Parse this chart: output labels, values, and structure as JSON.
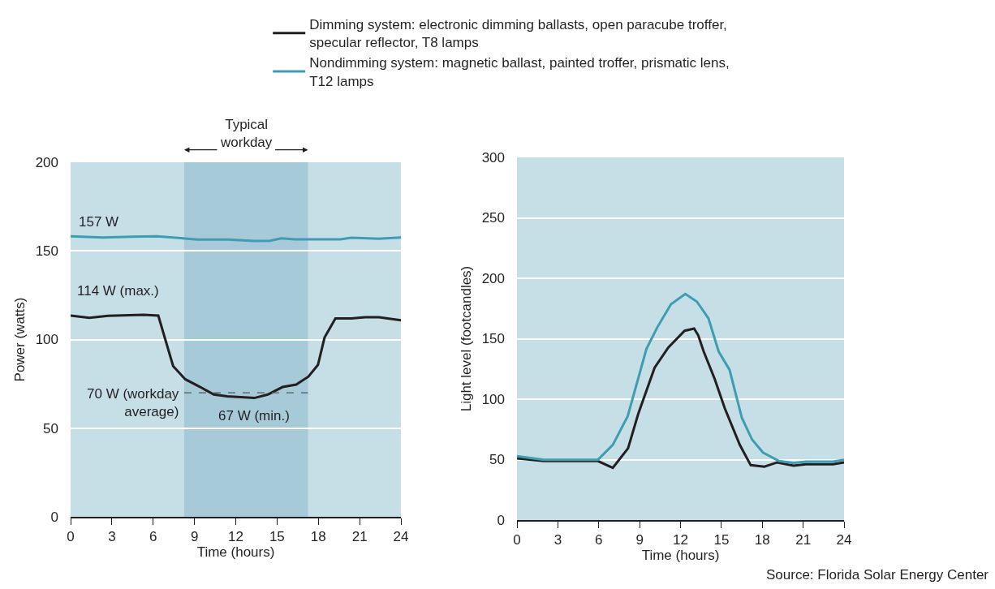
{
  "chart_data": [
    {
      "type": "line",
      "xlabel": "Time (hours)",
      "ylabel": "Power (watts)",
      "xlim": [
        0,
        24
      ],
      "xticks": [
        0,
        3,
        6,
        9,
        12,
        15,
        18,
        21,
        24
      ],
      "ylim": [
        0,
        200
      ],
      "yticks": [
        0,
        50,
        100,
        150,
        200
      ],
      "grid": "y",
      "legend": "top",
      "marker": "none",
      "line_style": "solid",
      "series": [
        {
          "name": "Dimming system: electronic dimming ballasts, open paracube troffer, specular reflector, T8 lamps",
          "color": "#231f20",
          "x": [
            0,
            1.36,
            2.73,
            4.3,
            5.29,
            6.37,
            7.45,
            8.33,
            9.42,
            10.4,
            11.38,
            13.35,
            14.33,
            15.4,
            16.39,
            17.28,
            17.97,
            18.45,
            19.24,
            20.4,
            21.4,
            22.4,
            24
          ],
          "values": [
            113.5,
            112.3,
            113.4,
            113.7,
            114,
            113.5,
            85,
            77.6,
            73.2,
            69,
            68,
            67,
            69,
            73.2,
            74.6,
            79.1,
            85.7,
            101.1,
            111.9,
            111.9,
            112.6,
            112.6,
            110.9
          ]
        },
        {
          "name": "Nondimming system: magnetic ballast, painted troffer, prismatic lens, T12 lamps",
          "color": "#3e9db3",
          "x": [
            0,
            2.34,
            4.5,
            6.27,
            7.45,
            9.2,
            11.4,
            13.35,
            14.5,
            15.3,
            16.3,
            19.6,
            20.4,
            22.4,
            24
          ],
          "values": [
            158.2,
            157.6,
            158,
            158.2,
            157.6,
            156.4,
            156.4,
            155.6,
            155.7,
            157.1,
            156.5,
            156.5,
            157.4,
            156.9,
            157.6
          ]
        },
        {
          "type": "line",
          "color": "#555555",
          "line_style": "dashed",
          "x": [
            8.25,
            17.25
          ],
          "values": [
            70,
            70
          ]
        }
      ],
      "bands": [
        {
          "axis": "x",
          "from": 8.25,
          "to": 17.25,
          "label": "Typical\nworkday",
          "color": "#a6cad8"
        }
      ],
      "annotations": [
        {
          "text": "157 W",
          "x": 0,
          "y": 158.2
        },
        {
          "text": "114 W (max.)",
          "x": 0,
          "y": 114
        },
        {
          "text": "70 W (workday\naverage)",
          "x": 8.25,
          "y": 70
        },
        {
          "text": "67 W (min.)",
          "x": 13.35,
          "y": 67
        }
      ]
    },
    {
      "type": "line",
      "xlabel": "Time (hours)",
      "ylabel": "Light level (footcandles)",
      "xlim": [
        0,
        24
      ],
      "xticks": [
        0,
        3,
        6,
        9,
        12,
        15,
        18,
        21,
        24
      ],
      "ylim": [
        0,
        300
      ],
      "yticks": [
        0,
        50,
        100,
        150,
        200,
        250,
        300
      ],
      "grid": "y",
      "legend": false,
      "marker": "none",
      "line_style": "solid",
      "series": [
        {
          "color": "#231f20",
          "x": [
            0,
            1.97,
            5.94,
            7.03,
            8.15,
            8.9,
            10.1,
            11.1,
            12.3,
            13,
            13.3,
            13.7,
            14.5,
            15.25,
            16.35,
            17.15,
            18.15,
            19.1,
            20.3,
            21.2,
            23.2,
            24
          ],
          "values": [
            51,
            48.8,
            48.8,
            43.2,
            59.3,
            87.9,
            126,
            142.7,
            156.6,
            158.4,
            152.8,
            139.4,
            117,
            92.4,
            62.2,
            45.4,
            44.1,
            47.7,
            45,
            46.1,
            46.1,
            47.7
          ]
        },
        {
          "color": "#3e9db3",
          "x": [
            0,
            1.97,
            5.94,
            7.03,
            8.12,
            9.5,
            10.3,
            11.3,
            12.35,
            13.2,
            14.05,
            14.8,
            15.6,
            16.5,
            17.25,
            18.05,
            19.24,
            20.3,
            21.2,
            23.2,
            24
          ],
          "values": [
            52.8,
            49.9,
            49.9,
            62.2,
            85.7,
            141.6,
            159.5,
            178.5,
            187,
            180.7,
            166.9,
            139.4,
            124.2,
            84.6,
            66.6,
            55.9,
            48.8,
            47.2,
            48.3,
            48.3,
            49.9
          ]
        }
      ],
      "annotations": [
        "Source: Florida Solar Energy Center"
      ]
    }
  ]
}
